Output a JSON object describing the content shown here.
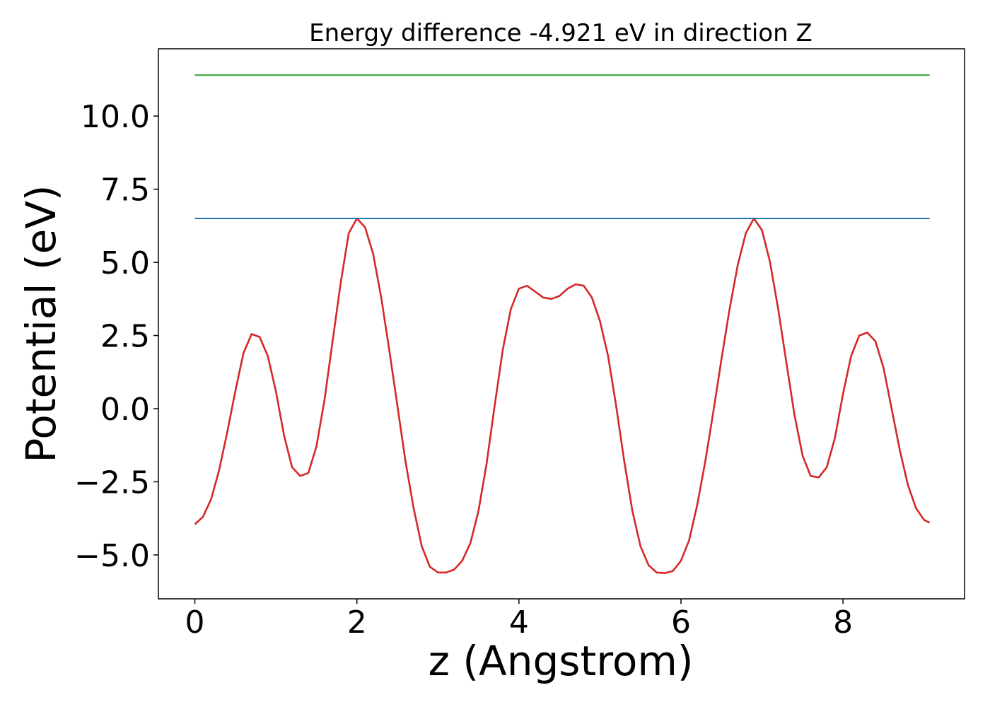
{
  "chart_data": {
    "type": "line",
    "title": "Energy difference -4.921 eV in direction Z",
    "xlabel": "z (Angstrom)",
    "ylabel": "Potential (eV)",
    "xlim": [
      -0.45,
      9.5
    ],
    "ylim": [
      -6.5,
      12.3
    ],
    "x_ticks": [
      0,
      2,
      4,
      6,
      8
    ],
    "y_ticks": [
      -5.0,
      -2.5,
      0.0,
      2.5,
      5.0,
      7.5,
      10.0
    ],
    "x_tick_labels": [
      "0",
      "2",
      "4",
      "6",
      "8"
    ],
    "y_tick_labels": [
      "−5.0",
      "−2.5",
      "0.0",
      "2.5",
      "5.0",
      "7.5",
      "10.0"
    ],
    "grid": false,
    "series": [
      {
        "color": "#d62728",
        "x": [
          0.0,
          0.1,
          0.2,
          0.3,
          0.4,
          0.5,
          0.6,
          0.7,
          0.8,
          0.9,
          1.0,
          1.1,
          1.2,
          1.3,
          1.4,
          1.5,
          1.6,
          1.7,
          1.8,
          1.9,
          2.0,
          2.1,
          2.2,
          2.3,
          2.4,
          2.5,
          2.6,
          2.7,
          2.8,
          2.9,
          3.0,
          3.1,
          3.2,
          3.3,
          3.4,
          3.5,
          3.6,
          3.7,
          3.8,
          3.9,
          4.0,
          4.1,
          4.2,
          4.3,
          4.4,
          4.5,
          4.6,
          4.7,
          4.8,
          4.9,
          5.0,
          5.1,
          5.2,
          5.3,
          5.4,
          5.5,
          5.6,
          5.7,
          5.8,
          5.9,
          6.0,
          6.1,
          6.2,
          6.3,
          6.4,
          6.5,
          6.6,
          6.7,
          6.8,
          6.9,
          7.0,
          7.1,
          7.2,
          7.3,
          7.4,
          7.5,
          7.6,
          7.7,
          7.8,
          7.9,
          8.0,
          8.1,
          8.2,
          8.3,
          8.4,
          8.5,
          8.6,
          8.7,
          8.8,
          8.9,
          9.0,
          9.07
        ],
        "y": [
          -3.95,
          -3.7,
          -3.1,
          -2.1,
          -0.8,
          0.6,
          1.9,
          2.55,
          2.45,
          1.8,
          0.6,
          -0.9,
          -2.0,
          -2.3,
          -2.2,
          -1.3,
          0.3,
          2.3,
          4.3,
          6.0,
          6.5,
          6.2,
          5.3,
          3.8,
          2.0,
          0.1,
          -1.8,
          -3.4,
          -4.7,
          -5.4,
          -5.6,
          -5.6,
          -5.5,
          -5.2,
          -4.6,
          -3.5,
          -1.9,
          0.1,
          2.0,
          3.4,
          4.1,
          4.2,
          4.0,
          3.8,
          3.75,
          3.85,
          4.1,
          4.25,
          4.2,
          3.8,
          3.0,
          1.8,
          0.1,
          -1.8,
          -3.5,
          -4.7,
          -5.35,
          -5.6,
          -5.62,
          -5.55,
          -5.2,
          -4.5,
          -3.3,
          -1.8,
          -0.1,
          1.7,
          3.4,
          4.9,
          6.0,
          6.5,
          6.1,
          5.0,
          3.4,
          1.6,
          -0.2,
          -1.6,
          -2.3,
          -2.35,
          -2.0,
          -1.0,
          0.5,
          1.8,
          2.5,
          2.6,
          2.3,
          1.4,
          0.0,
          -1.4,
          -2.6,
          -3.4,
          -3.8,
          -3.9
        ]
      },
      {
        "color": "#1f77b4",
        "x": [
          0.0,
          9.07
        ],
        "y": [
          6.5,
          6.5
        ]
      },
      {
        "color": "#2ca02c",
        "x": [
          0.0,
          9.07
        ],
        "y": [
          11.4,
          11.4
        ]
      }
    ]
  }
}
